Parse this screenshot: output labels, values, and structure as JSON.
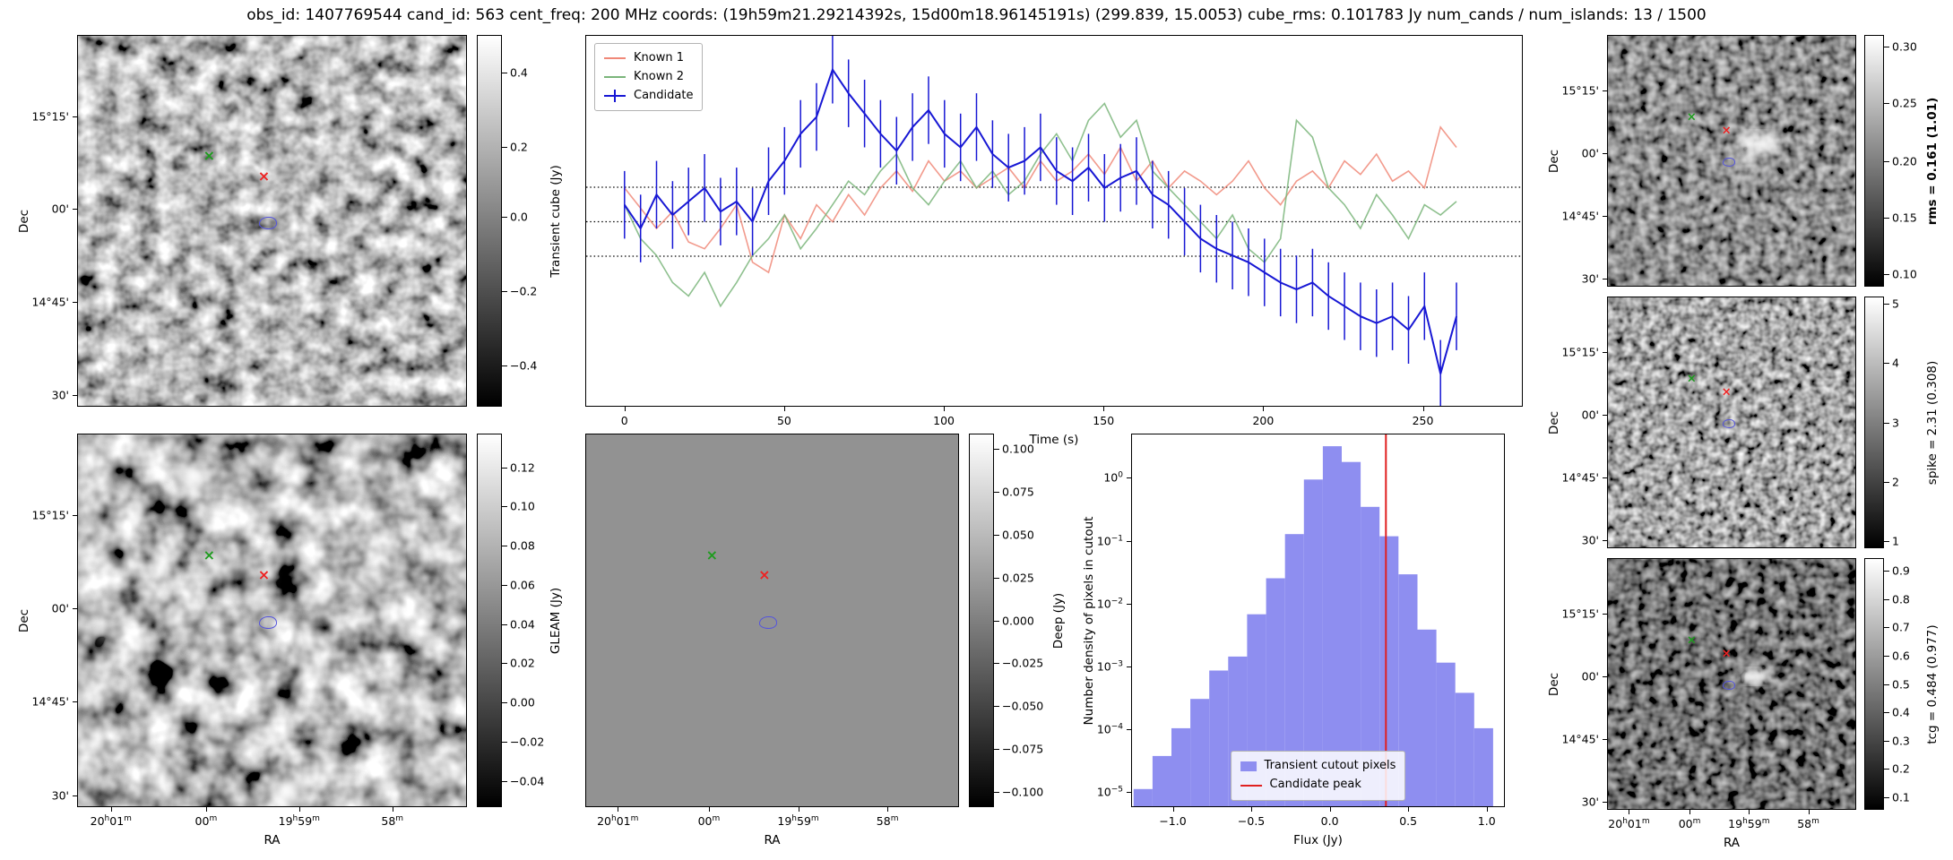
{
  "figure": {
    "title": "obs_id: 1407769544 cand_id: 563 cent_freq: 200 MHz coords: (19h59m21.29214392s, 15d00m18.96145191s) (299.839, 15.0053) cube_rms: 0.101783 Jy num_cands / num_islands: 13 / 1500"
  },
  "axis_labels": {
    "ra": "RA",
    "dec": "Dec"
  },
  "sky_ticks": {
    "ra_labels": [
      "20h01m",
      "00m",
      "19h59m",
      "58m"
    ],
    "ra_fracs": [
      0.085,
      0.33,
      0.57,
      0.81
    ],
    "dec_labels": [
      "15°15'",
      "00'",
      "14°45'",
      "30'"
    ],
    "dec_fracs": [
      0.217,
      0.468,
      0.719,
      0.97
    ]
  },
  "markers": {
    "green_x": [
      0.338,
      0.325
    ],
    "red_x": [
      0.479,
      0.379
    ],
    "contour": [
      0.49,
      0.507
    ],
    "colors": {
      "green": "#1f9c1f",
      "red": "#ee2222",
      "blue": "#5555dd"
    }
  },
  "colorbars": {
    "transient": {
      "label": "Transient cube (Jy)",
      "bold": false,
      "ticks": [
        "0.4",
        "0.2",
        "0.0",
        "−0.2",
        "−0.4"
      ],
      "fracs": [
        0.1,
        0.3,
        0.49,
        0.69,
        0.89
      ]
    },
    "gleam": {
      "label": "GLEAM (Jy)",
      "bold": false,
      "ticks": [
        "0.12",
        "0.10",
        "0.08",
        "0.06",
        "0.04",
        "0.02",
        "0.00",
        "−0.02",
        "−0.04"
      ],
      "fracs": [
        0.09,
        0.195,
        0.3,
        0.405,
        0.51,
        0.615,
        0.72,
        0.825,
        0.93
      ]
    },
    "deep": {
      "label": "Deep (Jy)",
      "bold": false,
      "ticks": [
        "0.100",
        "0.075",
        "0.050",
        "0.025",
        "0.000",
        "−0.025",
        "−0.050",
        "−0.075",
        "−0.100"
      ],
      "fracs": [
        0.04,
        0.155,
        0.27,
        0.385,
        0.5,
        0.615,
        0.73,
        0.845,
        0.96
      ]
    },
    "rms": {
      "label": "rms = 0.161 (1.01)",
      "bold": true,
      "ticks": [
        "0.30",
        "0.25",
        "0.20",
        "0.15",
        "0.10"
      ],
      "fracs": [
        0.045,
        0.27,
        0.5,
        0.725,
        0.95
      ]
    },
    "spike": {
      "label": "spike = 2.31 (0.308)",
      "bold": false,
      "ticks": [
        "5",
        "4",
        "3",
        "2",
        "1"
      ],
      "fracs": [
        0.03,
        0.265,
        0.5,
        0.735,
        0.97
      ]
    },
    "tcg": {
      "label": "tcg = 0.484 (0.977)",
      "bold": false,
      "ticks": [
        "0.9",
        "0.8",
        "0.7",
        "0.6",
        "0.5",
        "0.4",
        "0.3",
        "0.2",
        "0.1"
      ],
      "fracs": [
        0.05,
        0.1625,
        0.275,
        0.3875,
        0.5,
        0.6125,
        0.725,
        0.8375,
        0.95
      ]
    }
  },
  "chart_data": [
    {
      "type": "line",
      "name": "lightcurve",
      "xlabel": "Time (s)",
      "xlim": [
        -12,
        281
      ],
      "ylim": [
        -0.55,
        0.55
      ],
      "xticks": [
        0,
        50,
        100,
        150,
        200,
        250
      ],
      "hlines": [
        0.102,
        0,
        -0.102
      ],
      "legend_position": "upper left",
      "colors": {
        "Known 1": "#f08878",
        "Known 2": "#7ab57a",
        "Candidate": "#1717d4"
      },
      "x": [
        0,
        5,
        10,
        15,
        20,
        25,
        30,
        35,
        40,
        45,
        50,
        55,
        60,
        65,
        70,
        75,
        80,
        85,
        90,
        95,
        100,
        105,
        110,
        115,
        120,
        125,
        130,
        135,
        140,
        145,
        150,
        155,
        160,
        165,
        170,
        175,
        180,
        185,
        190,
        195,
        200,
        205,
        210,
        215,
        220,
        225,
        230,
        235,
        240,
        245,
        250,
        255,
        260
      ],
      "series": [
        {
          "name": "Known 1",
          "values": [
            0.1,
            0.04,
            -0.02,
            0.03,
            -0.06,
            -0.08,
            -0.02,
            0.05,
            -0.12,
            -0.15,
            0.02,
            -0.05,
            0.05,
            0.0,
            0.08,
            0.02,
            0.1,
            0.15,
            0.09,
            0.18,
            0.12,
            0.15,
            0.1,
            0.13,
            0.16,
            0.1,
            0.18,
            0.12,
            0.15,
            0.2,
            0.14,
            0.22,
            0.12,
            0.18,
            0.1,
            0.15,
            0.12,
            0.08,
            0.12,
            0.18,
            0.1,
            0.05,
            0.12,
            0.15,
            0.1,
            0.18,
            0.14,
            0.2,
            0.12,
            0.15,
            0.1,
            0.28,
            0.22
          ]
        },
        {
          "name": "Known 2",
          "values": [
            0.05,
            -0.05,
            -0.1,
            -0.18,
            -0.22,
            -0.15,
            -0.25,
            -0.18,
            -0.1,
            -0.05,
            0.02,
            -0.08,
            -0.02,
            0.05,
            0.12,
            0.08,
            0.15,
            0.2,
            0.1,
            0.05,
            0.12,
            0.18,
            0.1,
            0.15,
            0.08,
            0.12,
            0.2,
            0.26,
            0.18,
            0.3,
            0.35,
            0.25,
            0.3,
            0.15,
            0.1,
            0.05,
            0.0,
            -0.05,
            0.02,
            -0.08,
            -0.12,
            -0.05,
            0.3,
            0.25,
            0.1,
            0.05,
            -0.02,
            0.08,
            0.02,
            -0.05,
            0.05,
            0.02,
            0.06
          ]
        },
        {
          "name": "Candidate",
          "yerr": 0.1,
          "values": [
            0.05,
            -0.02,
            0.08,
            0.02,
            0.06,
            0.1,
            0.03,
            0.06,
            0.0,
            0.12,
            0.18,
            0.26,
            0.31,
            0.45,
            0.38,
            0.32,
            0.26,
            0.21,
            0.28,
            0.33,
            0.26,
            0.22,
            0.28,
            0.2,
            0.16,
            0.18,
            0.22,
            0.15,
            0.12,
            0.16,
            0.1,
            0.13,
            0.15,
            0.08,
            0.05,
            0.0,
            -0.05,
            -0.08,
            -0.1,
            -0.12,
            -0.15,
            -0.18,
            -0.2,
            -0.18,
            -0.22,
            -0.25,
            -0.28,
            -0.3,
            -0.28,
            -0.32,
            -0.25,
            -0.45,
            -0.28
          ]
        }
      ],
      "legend": [
        {
          "label": "Known 1",
          "type": "line"
        },
        {
          "label": "Known 2",
          "type": "line"
        },
        {
          "label": "Candidate",
          "type": "errorbar"
        }
      ]
    },
    {
      "type": "bar",
      "name": "histogram",
      "xlabel": "Flux (Jy)",
      "ylabel": "Number density of pixels in cutout",
      "yscale": "log",
      "xlim": [
        -1.26,
        1.11
      ],
      "ylim": [
        6e-06,
        4.9
      ],
      "xticks": [
        -1.0,
        -0.5,
        0.0,
        0.5,
        1.0
      ],
      "ytick_exponents": [
        0,
        -1,
        -2,
        -3,
        -4,
        -5
      ],
      "bin_width": 0.12,
      "bin_centers": [
        -1.19,
        -1.07,
        -0.95,
        -0.83,
        -0.71,
        -0.59,
        -0.47,
        -0.35,
        -0.23,
        -0.11,
        0.01,
        0.13,
        0.25,
        0.37,
        0.49,
        0.61,
        0.73,
        0.85,
        0.97
      ],
      "densities": [
        1.2e-05,
        4e-05,
        0.00011,
        0.00032,
        0.0009,
        0.0015,
        0.007,
        0.026,
        0.13,
        0.95,
        3.2,
        1.8,
        0.35,
        0.12,
        0.03,
        0.004,
        0.0012,
        0.0004,
        0.00011
      ],
      "candidate_peak": 0.35,
      "bar_color": "#8e8ef0",
      "line_color": "#e02020",
      "legend_position": "lower center",
      "legend": [
        {
          "label": "Transient cutout pixels",
          "type": "patch",
          "color": "#8e8ef0"
        },
        {
          "label": "Candidate peak",
          "type": "line",
          "color": "#e02020"
        }
      ]
    }
  ]
}
